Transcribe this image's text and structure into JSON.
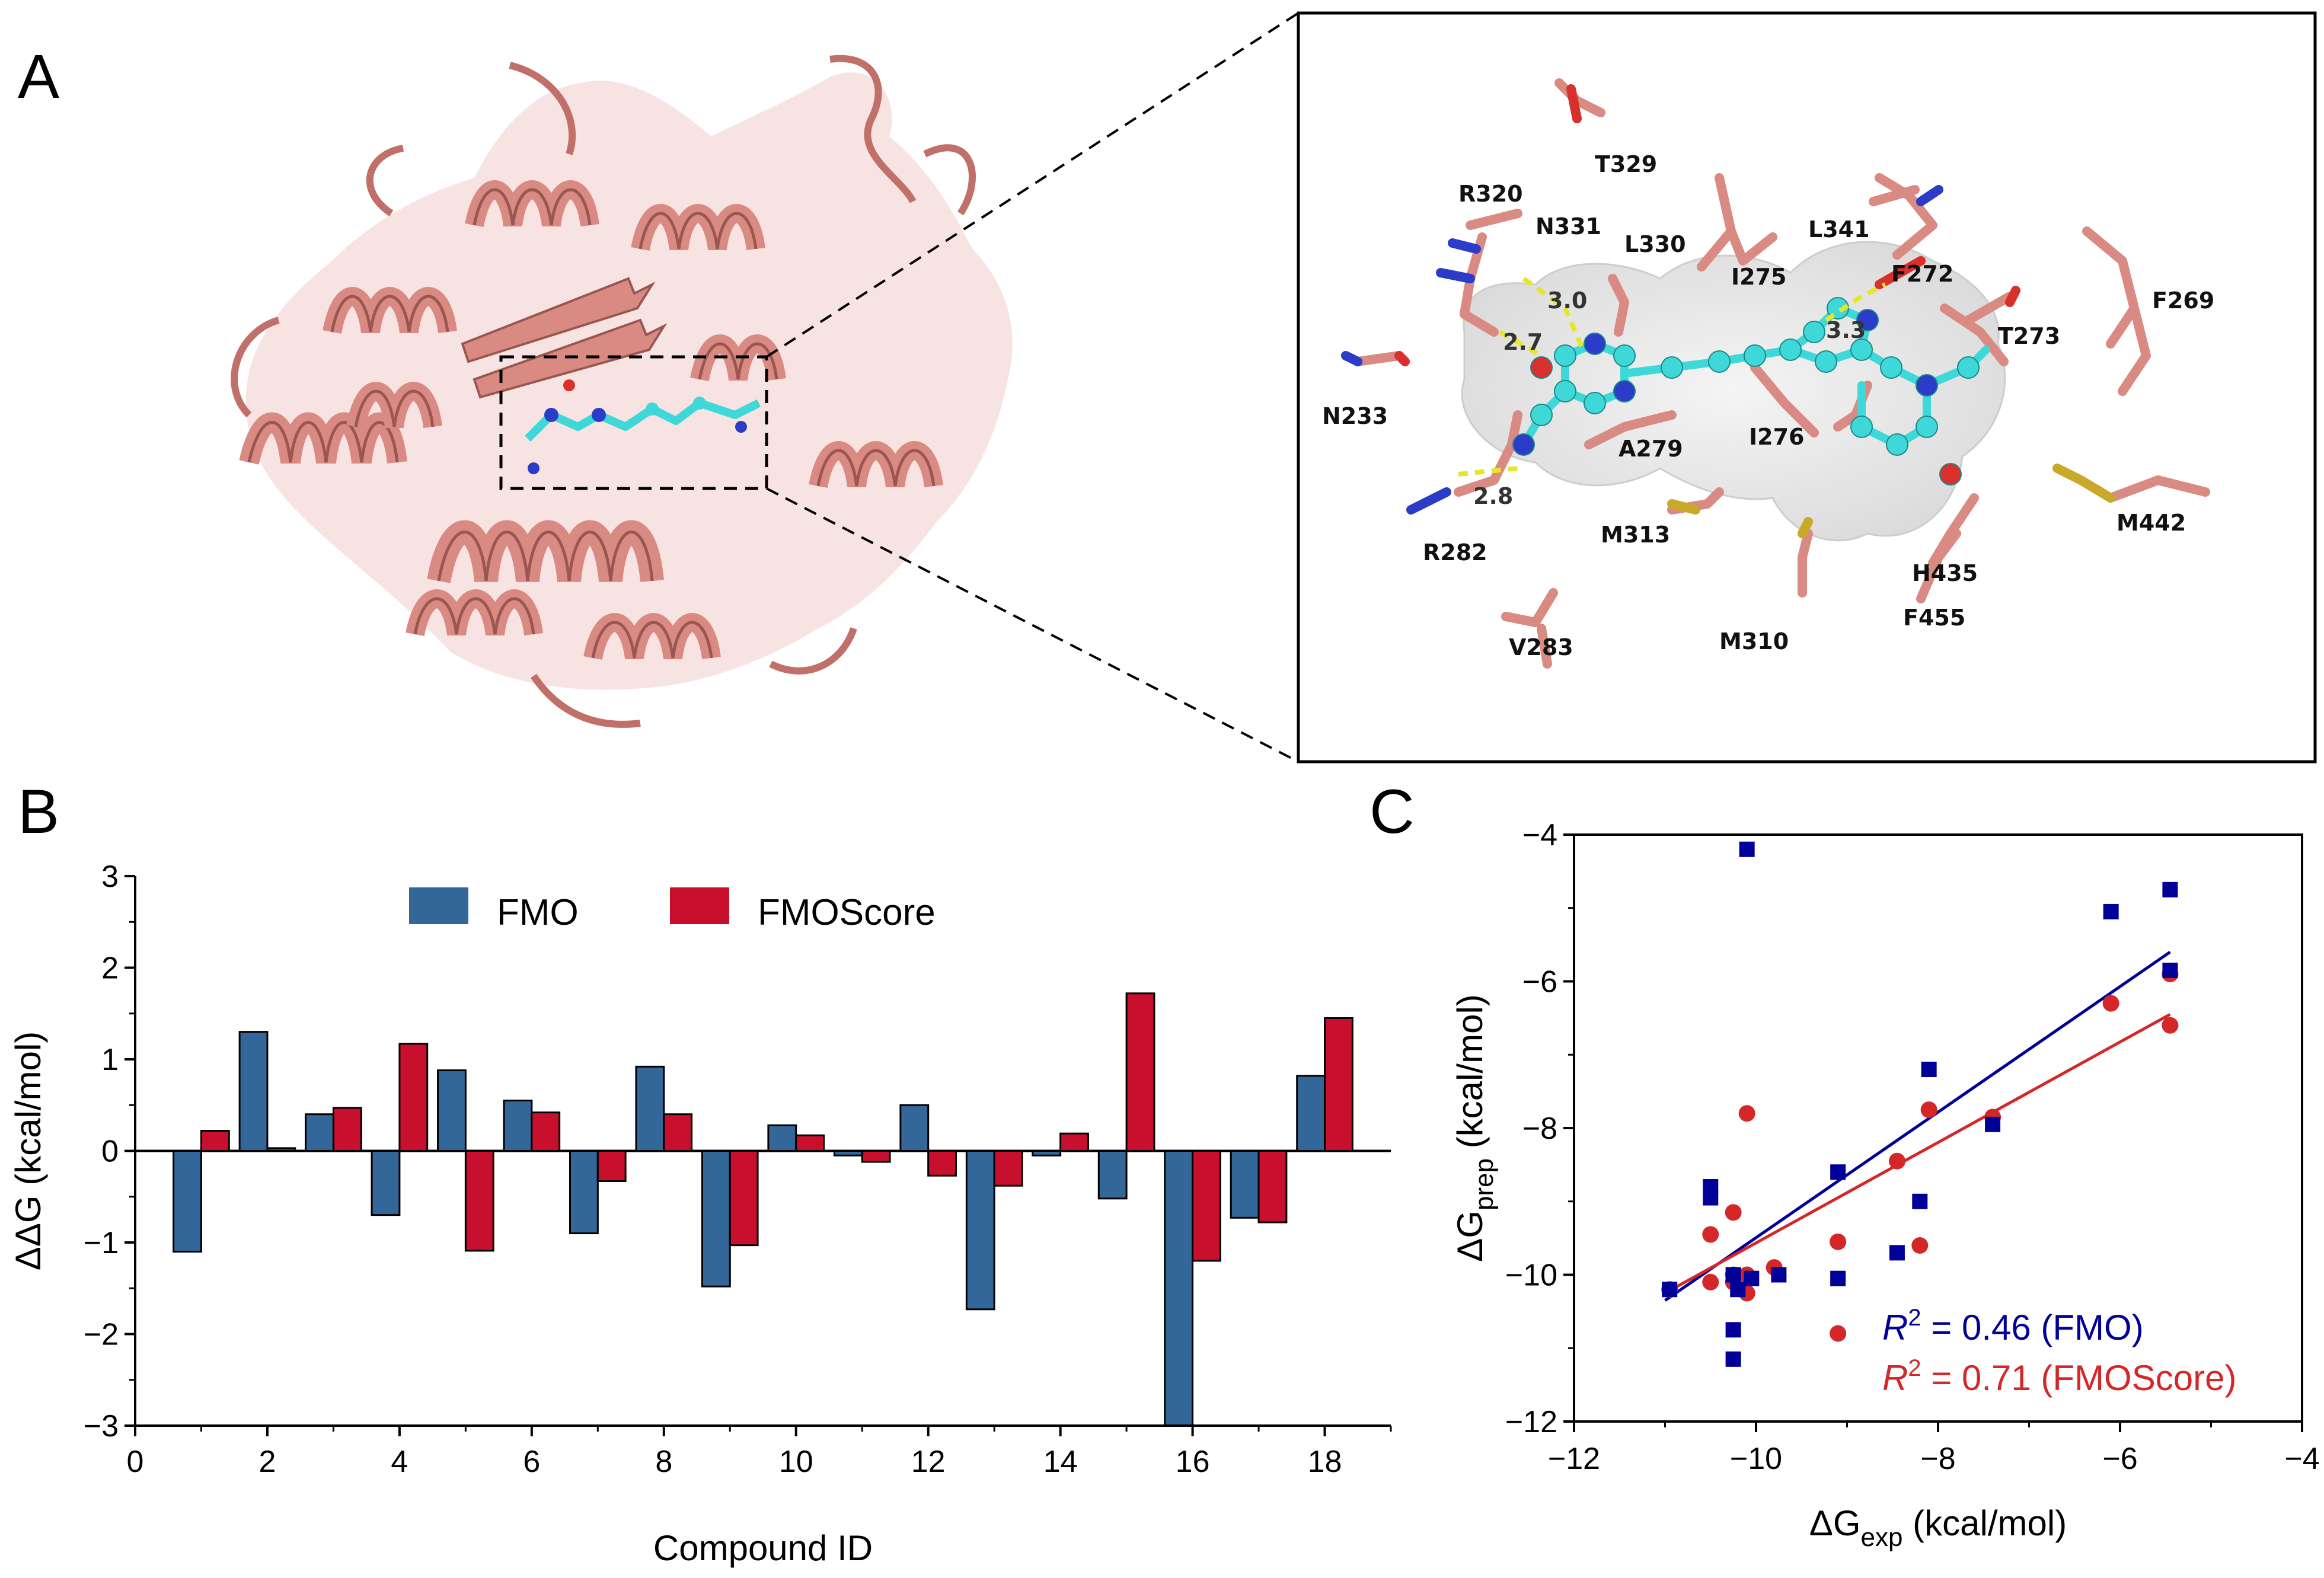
{
  "panels": {
    "a": "A",
    "b": "B",
    "c": "C"
  },
  "residues": [
    {
      "label": "T329"
    },
    {
      "label": "R320"
    },
    {
      "label": "N331"
    },
    {
      "label": "L330"
    },
    {
      "label": "I275"
    },
    {
      "label": "L341"
    },
    {
      "label": "F272"
    },
    {
      "label": "F269"
    },
    {
      "label": "T273"
    },
    {
      "label": "N233"
    },
    {
      "label": "A279"
    },
    {
      "label": "I276"
    },
    {
      "label": "R282"
    },
    {
      "label": "M313"
    },
    {
      "label": "M442"
    },
    {
      "label": "H435"
    },
    {
      "label": "F455"
    },
    {
      "label": "M310"
    },
    {
      "label": "V283"
    }
  ],
  "hbonds": [
    {
      "label": "3.0"
    },
    {
      "label": "2.7"
    },
    {
      "label": "2.8"
    },
    {
      "label": "3.3"
    }
  ],
  "colors": {
    "protein": "#d98a82",
    "ligand": "#3fd8d8",
    "nitrogen": "#2a3cc8",
    "oxygen": "#d8302c",
    "sulfur": "#c9a92a",
    "fmo": "#336699",
    "fmoscore": "#c8102e",
    "fit_fmo": "#000099",
    "fit_fmoscore": "#d62728"
  },
  "chart_data": [
    {
      "type": "bar",
      "xlabel": "Compound ID",
      "ylabel": "ΔΔG (kcal/mol)",
      "xlim": [
        0,
        19
      ],
      "ylim": [
        -3,
        3
      ],
      "xticks": [
        0,
        2,
        4,
        6,
        8,
        10,
        12,
        14,
        16,
        18
      ],
      "yticks": [
        -3,
        -2,
        -1,
        0,
        1,
        2,
        3
      ],
      "legend_position": "top-center",
      "categories": [
        1,
        2,
        3,
        4,
        5,
        6,
        7,
        8,
        9,
        10,
        11,
        12,
        13,
        14,
        15,
        16,
        17,
        18
      ],
      "series": [
        {
          "name": "FMO",
          "values": [
            -1.1,
            1.3,
            0.4,
            -0.7,
            0.88,
            0.55,
            -0.9,
            0.92,
            -1.48,
            0.28,
            -0.05,
            0.5,
            -1.73,
            -0.05,
            -0.52,
            -3.0,
            -0.73,
            0.82
          ]
        },
        {
          "name": "FMOScore",
          "values": [
            0.22,
            0.03,
            0.47,
            1.17,
            -1.09,
            0.42,
            -0.33,
            0.4,
            -1.03,
            0.17,
            -0.12,
            -0.27,
            -0.38,
            0.19,
            1.72,
            -1.2,
            -0.78,
            1.45
          ]
        }
      ]
    },
    {
      "type": "scatter",
      "xlabel": {
        "main": "ΔG",
        "sub": "exp",
        "unit": " (kcal/mol)"
      },
      "ylabel": {
        "main": "ΔG",
        "sub": "prep",
        "unit": " (kcal/mol)"
      },
      "xlim": [
        -12,
        -4
      ],
      "ylim": [
        -12,
        -4
      ],
      "xticks": [
        -12,
        -10,
        -8,
        -6,
        -4
      ],
      "yticks": [
        -12,
        -10,
        -8,
        -6,
        -4
      ],
      "xtick_labels": [
        "−12",
        "−10",
        "−8",
        "−6",
        "−4"
      ],
      "ytick_labels": [
        "−12",
        "−10",
        "−8",
        "−6",
        "−4"
      ],
      "annotations": [
        {
          "r": "R",
          "sup": "2",
          "text": " = 0.46 (FMO)"
        },
        {
          "r": "R",
          "sup": "2",
          "text": " = 0.71 (FMOScore)"
        }
      ],
      "series": [
        {
          "name": "FMO",
          "marker": "square",
          "x": [
            -10.95,
            -10.5,
            -10.5,
            -10.25,
            -10.25,
            -10.25,
            -10.2,
            -10.1,
            -10.05,
            -9.75,
            -9.1,
            -9.1,
            -8.45,
            -8.2,
            -8.1,
            -7.4,
            -6.1,
            -5.45,
            -5.45
          ],
          "y": [
            -10.2,
            -8.8,
            -8.95,
            -10.0,
            -10.75,
            -11.15,
            -10.2,
            -4.2,
            -10.05,
            -10.0,
            -10.05,
            -8.6,
            -9.7,
            -9.0,
            -7.2,
            -7.95,
            -5.05,
            -4.75,
            -5.85
          ],
          "fit": {
            "x": [
              -11.0,
              -5.45
            ],
            "y": [
              -10.35,
              -5.6
            ]
          }
        },
        {
          "name": "FMOScore",
          "marker": "circle",
          "x": [
            -10.95,
            -10.5,
            -10.5,
            -10.25,
            -10.25,
            -10.25,
            -10.1,
            -10.1,
            -10.1,
            -9.8,
            -9.1,
            -9.1,
            -8.45,
            -8.2,
            -8.1,
            -7.4,
            -6.1,
            -5.45,
            -5.45
          ],
          "y": [
            -10.2,
            -10.1,
            -9.45,
            -10.0,
            -10.1,
            -9.15,
            -10.25,
            -10.0,
            -7.8,
            -9.9,
            -9.55,
            -10.8,
            -8.45,
            -9.6,
            -7.75,
            -7.85,
            -6.3,
            -5.9,
            -6.6
          ],
          "fit": {
            "x": [
              -11.0,
              -5.45
            ],
            "y": [
              -10.25,
              -6.45
            ]
          }
        }
      ]
    }
  ]
}
